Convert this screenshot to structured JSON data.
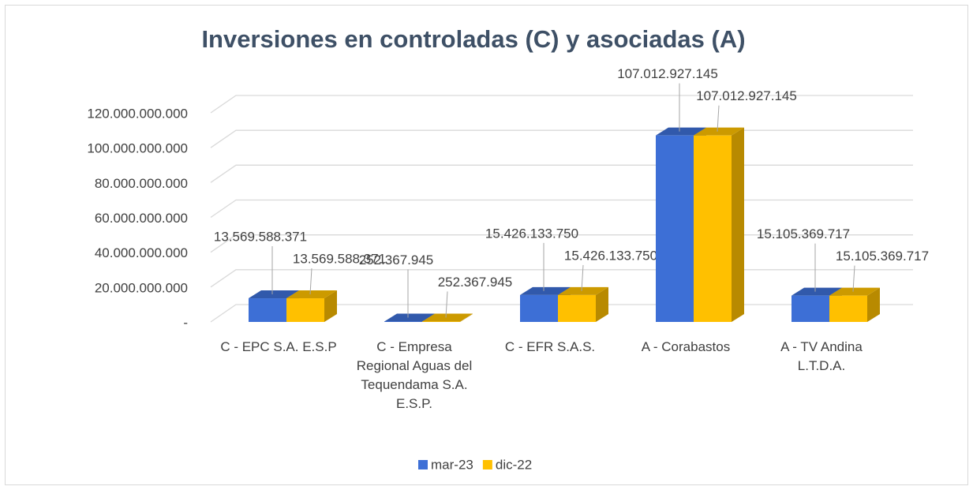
{
  "chart_data": {
    "type": "bar3d",
    "title": "Inversiones en controladas (C) y asociadas (A)",
    "categories": [
      "C - EPC S.A. E.S.P",
      "C - Empresa Regional Aguas del Tequendama S.A. E.S.P.",
      "C - EFR S.A.S.",
      "A - Corabastos",
      "A - TV Andina L.T.D.A."
    ],
    "series": [
      {
        "name": "mar-23",
        "color": "#3d6fd6",
        "values": [
          13569588371,
          252367945,
          15426133750,
          107012927145,
          15105369717
        ],
        "value_labels": [
          "13.569.588.371",
          "252.367.945",
          "15.426.133.750",
          "107.012.927.145",
          "15.105.369.717"
        ]
      },
      {
        "name": "dic-22",
        "color": "#ffc000",
        "values": [
          13569588371,
          252367945,
          15426133750,
          107012927145,
          15105369717
        ],
        "value_labels": [
          "13.569.588.371",
          "252.367.945",
          "15.426.133.750",
          "107.012.927.145",
          "15.105.369.717"
        ]
      }
    ],
    "ylim": [
      0,
      120000000000
    ],
    "yticks": [
      {
        "value": 0,
        "label": "-"
      },
      {
        "value": 20000000000,
        "label": "20.000.000.000"
      },
      {
        "value": 40000000000,
        "label": "40.000.000.000"
      },
      {
        "value": 60000000000,
        "label": "60.000.000.000"
      },
      {
        "value": 80000000000,
        "label": "80.000.000.000"
      },
      {
        "value": 100000000000,
        "label": "100.000.000.000"
      },
      {
        "value": 120000000000,
        "label": "120.000.000.000"
      }
    ],
    "grid": true,
    "legend": "bottom"
  }
}
